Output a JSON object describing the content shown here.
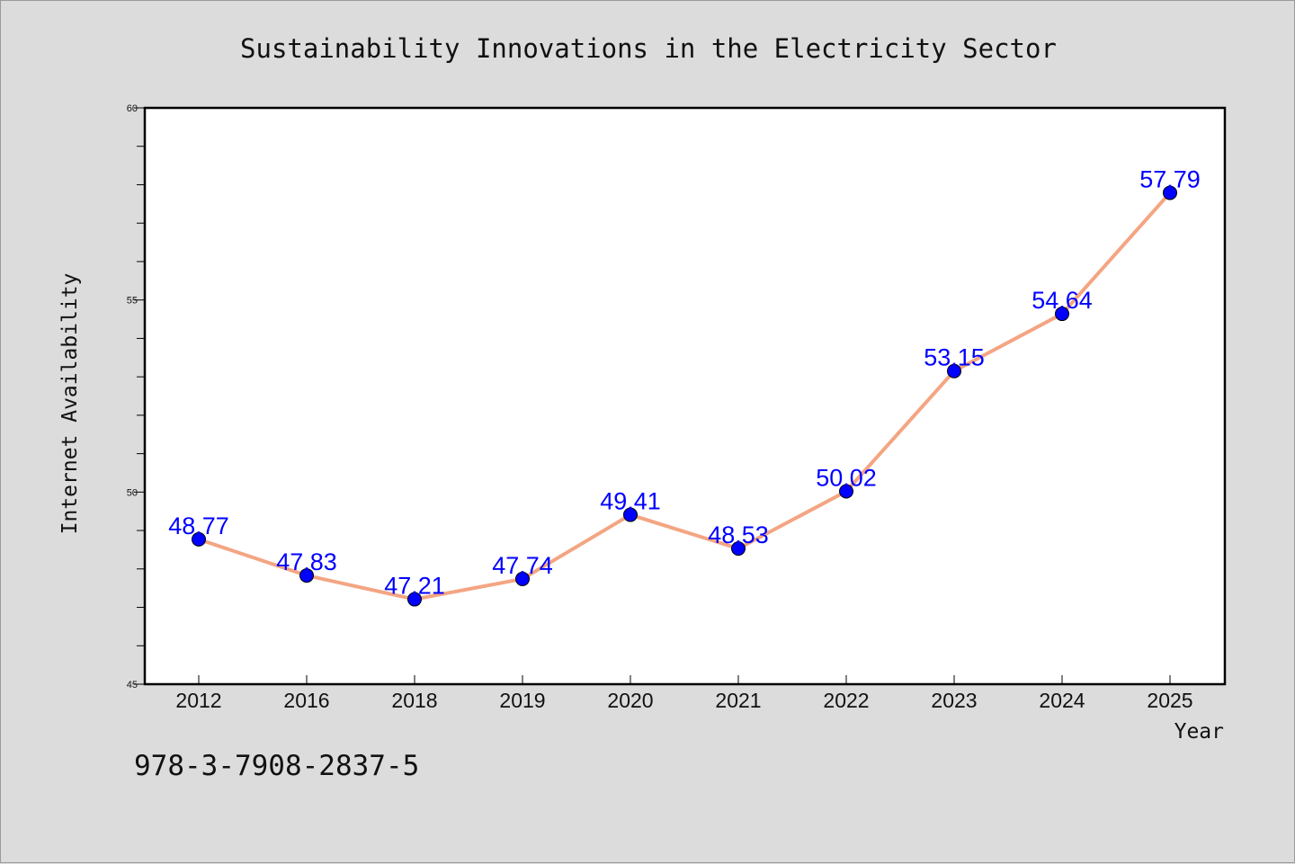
{
  "chart_data": {
    "type": "line",
    "title": "Sustainability Innovations in the Electricity Sector",
    "xlabel": "Year",
    "ylabel": "Internet Availability",
    "categories": [
      "2012",
      "2016",
      "2018",
      "2019",
      "2020",
      "2021",
      "2022",
      "2023",
      "2024",
      "2025"
    ],
    "values": [
      48.77,
      47.83,
      47.21,
      47.74,
      49.41,
      48.53,
      50.02,
      53.15,
      54.64,
      57.79
    ],
    "ylim": [
      45,
      60
    ],
    "yticks": [
      "45",
      "50",
      "55",
      "60"
    ],
    "data_labels": [
      "48.77",
      "47.83",
      "47.21",
      "47.74",
      "49.41",
      "48.53",
      "50.02",
      "53.15",
      "54.64",
      "57.79"
    ],
    "line_color": "#f4a582",
    "marker_color": "#0000ff",
    "label_color": "#0000ff",
    "grid": false,
    "legend": "none"
  },
  "footer": {
    "isbn": "978-3-7908-2837-5"
  }
}
